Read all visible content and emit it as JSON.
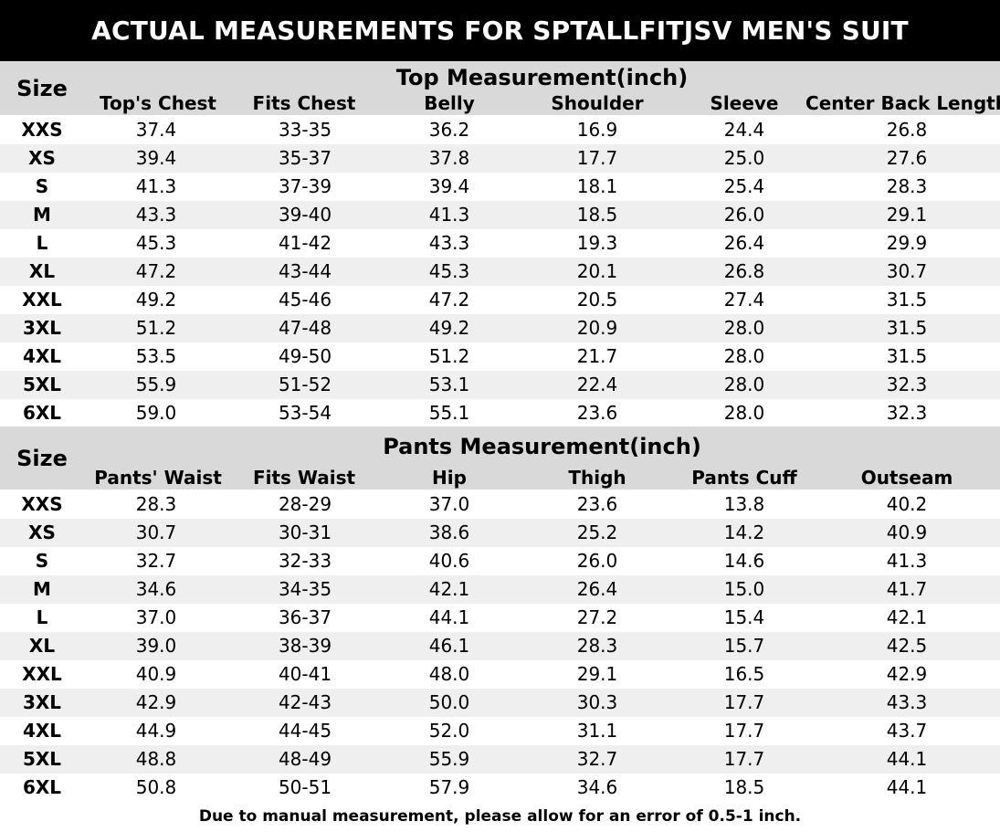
{
  "title": "ACTUAL MEASUREMENTS FOR SPTALLFITJSV MEN'S SUIT",
  "top": {
    "size_header": "Size",
    "section_title": "Top Measurement(inch)",
    "columns": [
      "Top's Chest",
      "Fits Chest",
      "Belly",
      "Shoulder",
      "Sleeve",
      "Center Back Length"
    ],
    "rows": [
      [
        "XXS",
        "37.4",
        "33-35",
        "36.2",
        "16.9",
        "24.4",
        "26.8"
      ],
      [
        "XS",
        "39.4",
        "35-37",
        "37.8",
        "17.7",
        "25.0",
        "27.6"
      ],
      [
        "S",
        "41.3",
        "37-39",
        "39.4",
        "18.1",
        "25.4",
        "28.3"
      ],
      [
        "M",
        "43.3",
        "39-40",
        "41.3",
        "18.5",
        "26.0",
        "29.1"
      ],
      [
        "L",
        "45.3",
        "41-42",
        "43.3",
        "19.3",
        "26.4",
        "29.9"
      ],
      [
        "XL",
        "47.2",
        "43-44",
        "45.3",
        "20.1",
        "26.8",
        "30.7"
      ],
      [
        "XXL",
        "49.2",
        "45-46",
        "47.2",
        "20.5",
        "27.4",
        "31.5"
      ],
      [
        "3XL",
        "51.2",
        "47-48",
        "49.2",
        "20.9",
        "28.0",
        "31.5"
      ],
      [
        "4XL",
        "53.5",
        "49-50",
        "51.2",
        "21.7",
        "28.0",
        "31.5"
      ],
      [
        "5XL",
        "55.9",
        "51-52",
        "53.1",
        "22.4",
        "28.0",
        "32.3"
      ],
      [
        "6XL",
        "59.0",
        "53-54",
        "55.1",
        "23.6",
        "28.0",
        "32.3"
      ]
    ]
  },
  "pants": {
    "size_header": "Size",
    "section_title": "Pants Measurement(inch)",
    "columns": [
      "Pants' Waist",
      "Fits Waist",
      "Hip",
      "Thigh",
      "Pants Cuff",
      "Outseam"
    ],
    "rows": [
      [
        "XXS",
        "28.3",
        "28-29",
        "37.0",
        "23.6",
        "13.8",
        "40.2"
      ],
      [
        "XS",
        "30.7",
        "30-31",
        "38.6",
        "25.2",
        "14.2",
        "40.9"
      ],
      [
        "S",
        "32.7",
        "32-33",
        "40.6",
        "26.0",
        "14.6",
        "41.3"
      ],
      [
        "M",
        "34.6",
        "34-35",
        "42.1",
        "26.4",
        "15.0",
        "41.7"
      ],
      [
        "L",
        "37.0",
        "36-37",
        "44.1",
        "27.2",
        "15.4",
        "42.1"
      ],
      [
        "XL",
        "39.0",
        "38-39",
        "46.1",
        "28.3",
        "15.7",
        "42.5"
      ],
      [
        "XXL",
        "40.9",
        "40-41",
        "48.0",
        "29.1",
        "16.5",
        "42.9"
      ],
      [
        "3XL",
        "42.9",
        "42-43",
        "50.0",
        "30.3",
        "17.7",
        "43.3"
      ],
      [
        "4XL",
        "44.9",
        "44-45",
        "52.0",
        "31.1",
        "17.7",
        "43.7"
      ],
      [
        "5XL",
        "48.8",
        "48-49",
        "55.9",
        "32.7",
        "17.7",
        "44.1"
      ],
      [
        "6XL",
        "50.8",
        "50-51",
        "57.9",
        "34.6",
        "18.5",
        "44.1"
      ]
    ]
  },
  "footnote": "Due to manual measurement, please allow for an error of 0.5-1 inch."
}
